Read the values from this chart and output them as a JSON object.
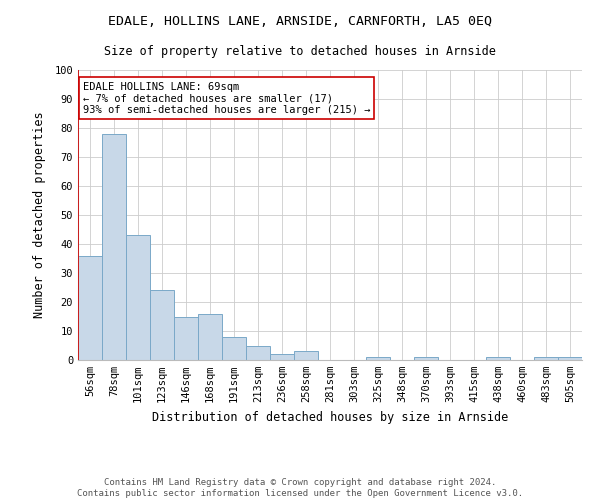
{
  "title": "EDALE, HOLLINS LANE, ARNSIDE, CARNFORTH, LA5 0EQ",
  "subtitle": "Size of property relative to detached houses in Arnside",
  "xlabel": "Distribution of detached houses by size in Arnside",
  "ylabel": "Number of detached properties",
  "categories": [
    "56sqm",
    "78sqm",
    "101sqm",
    "123sqm",
    "146sqm",
    "168sqm",
    "191sqm",
    "213sqm",
    "236sqm",
    "258sqm",
    "281sqm",
    "303sqm",
    "325sqm",
    "348sqm",
    "370sqm",
    "393sqm",
    "415sqm",
    "438sqm",
    "460sqm",
    "483sqm",
    "505sqm"
  ],
  "values": [
    36,
    78,
    43,
    24,
    15,
    16,
    8,
    5,
    2,
    3,
    0,
    0,
    1,
    0,
    1,
    0,
    0,
    1,
    0,
    1,
    1
  ],
  "bar_color": "#c8d8e8",
  "bar_edge_color": "#7aa8c8",
  "property_index": 0,
  "property_line_color": "#cc0000",
  "annotation_text": "EDALE HOLLINS LANE: 69sqm\n← 7% of detached houses are smaller (17)\n93% of semi-detached houses are larger (215) →",
  "annotation_box_color": "#ffffff",
  "annotation_box_edge_color": "#cc0000",
  "ylim": [
    0,
    100
  ],
  "yticks": [
    0,
    10,
    20,
    30,
    40,
    50,
    60,
    70,
    80,
    90,
    100
  ],
  "grid_color": "#cccccc",
  "background_color": "#ffffff",
  "footer": "Contains HM Land Registry data © Crown copyright and database right 2024.\nContains public sector information licensed under the Open Government Licence v3.0.",
  "title_fontsize": 9.5,
  "subtitle_fontsize": 8.5,
  "axis_label_fontsize": 8.5,
  "tick_fontsize": 7.5,
  "footer_fontsize": 6.5,
  "annotation_fontsize": 7.5
}
